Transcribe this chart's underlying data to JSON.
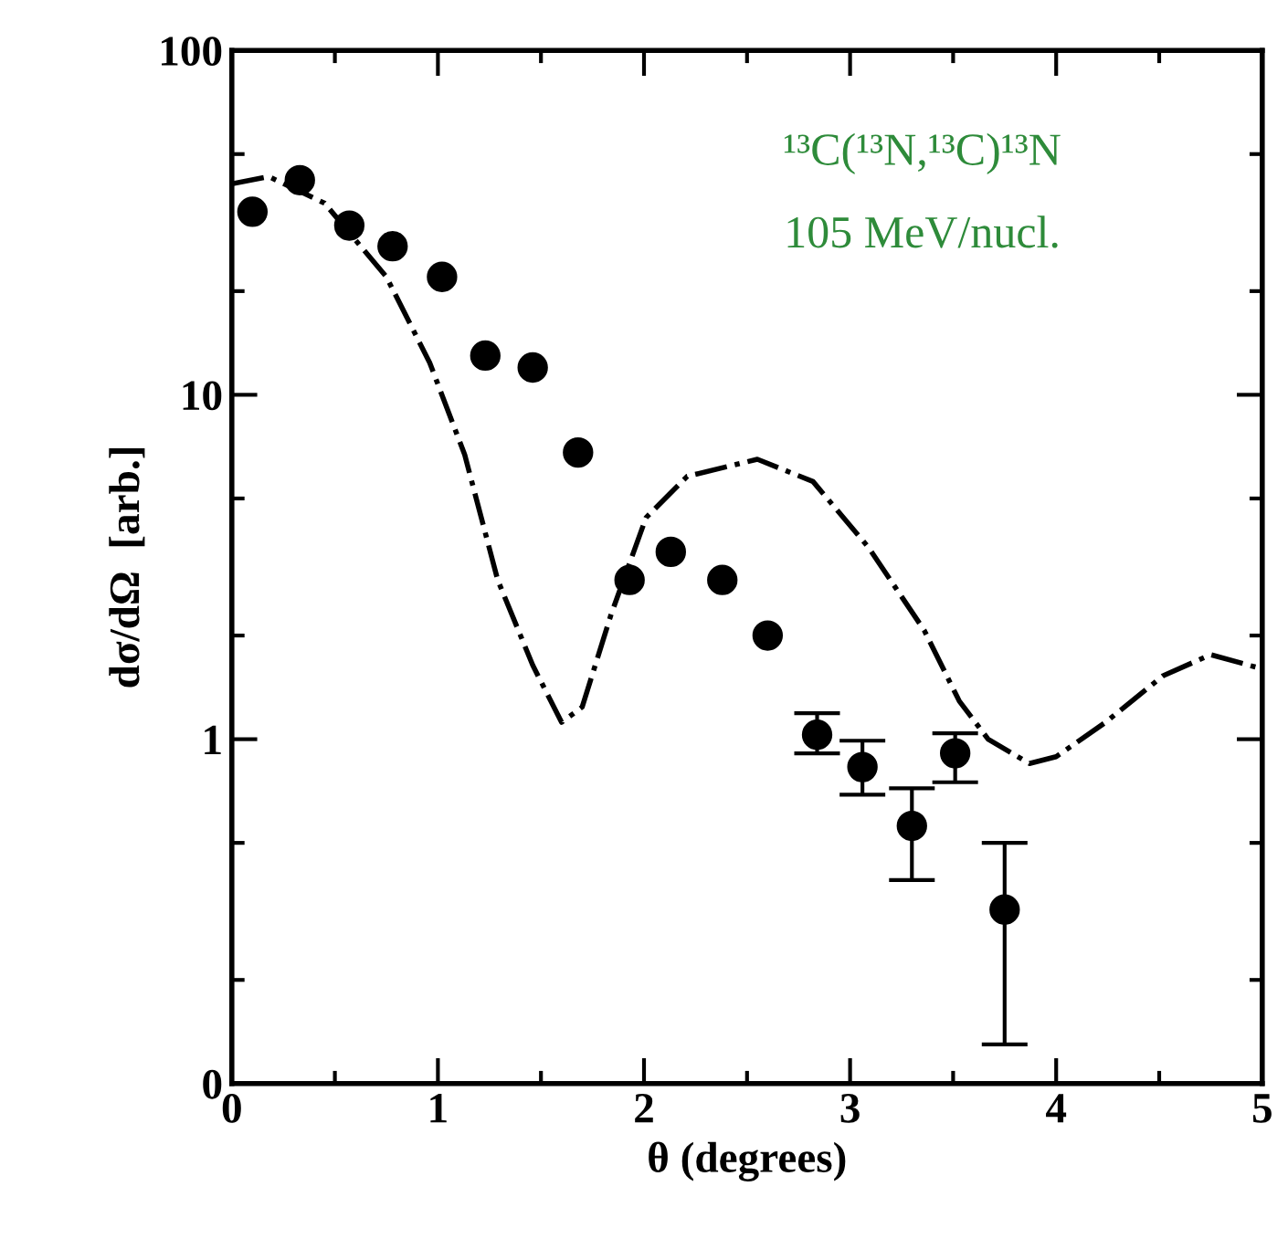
{
  "chart_data": {
    "type": "scatter",
    "xlabel": "θ (degrees)",
    "ylabel": "dσ/dΩ  [arb.]",
    "log": "y",
    "xlim": [
      0,
      5
    ],
    "xticks": [
      0,
      1,
      2,
      3,
      4,
      5
    ],
    "ylim": [
      0.1,
      100
    ],
    "yticks": [
      {
        "value": 0.1,
        "label": "0"
      },
      1,
      10,
      100
    ],
    "grid": false,
    "legend": false,
    "annotations": [
      "¹³C(¹³N,¹³C)¹³N",
      "105 MeV/nucl."
    ],
    "series": [
      {
        "color": "#000000",
        "marker": "circle",
        "x": [
          0.1,
          0.33,
          0.57,
          0.78,
          1.02,
          1.23,
          1.46,
          1.68,
          1.93,
          2.13,
          2.38,
          2.6,
          2.84,
          3.06,
          3.3,
          3.51,
          3.75
        ],
        "values": [
          34,
          42,
          31,
          27,
          22,
          13,
          12,
          6.8,
          2.9,
          3.5,
          2.9,
          2.0,
          1.03,
          0.83,
          0.56,
          0.91,
          0.32
        ],
        "errors": [
          null,
          null,
          null,
          null,
          null,
          null,
          null,
          null,
          null,
          null,
          null,
          null,
          [
            0.91,
            1.19
          ],
          [
            0.69,
            0.99
          ],
          [
            0.39,
            0.72
          ],
          [
            0.75,
            1.04
          ],
          [
            0.13,
            0.5
          ]
        ]
      },
      {
        "type": "line",
        "color": "#000000",
        "line_style": "dashed",
        "x": [
          0,
          0.18,
          0.45,
          0.75,
          0.96,
          1.13,
          1.29,
          1.46,
          1.6,
          1.7,
          1.84,
          2.01,
          2.21,
          2.55,
          2.82,
          3.09,
          3.36,
          3.53,
          3.67,
          3.87,
          4.0,
          4.24,
          4.52,
          4.75,
          5.0
        ],
        "values": [
          41,
          43,
          36,
          22,
          12.4,
          6.7,
          2.9,
          1.64,
          1.12,
          1.24,
          2.3,
          4.4,
          5.8,
          6.5,
          5.6,
          3.6,
          2.07,
          1.29,
          1.0,
          0.85,
          0.89,
          1.12,
          1.53,
          1.76,
          1.6
        ]
      }
    ]
  }
}
